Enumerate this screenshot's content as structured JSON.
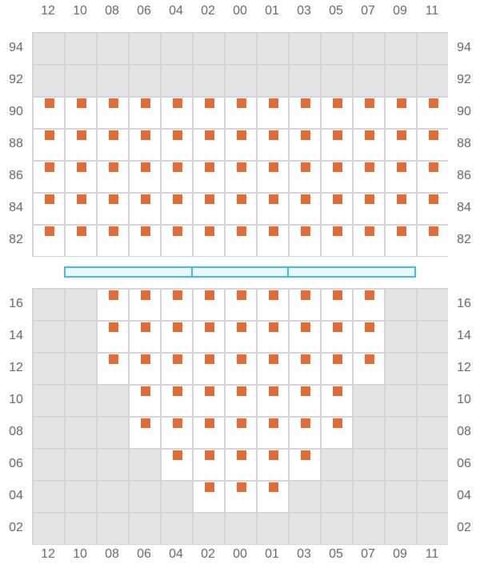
{
  "columns": [
    "12",
    "10",
    "08",
    "06",
    "04",
    "02",
    "00",
    "01",
    "03",
    "05",
    "07",
    "09",
    "11"
  ],
  "top_section": {
    "rows": [
      {
        "label": "94",
        "available_cols": []
      },
      {
        "label": "92",
        "available_cols": []
      },
      {
        "label": "90",
        "available_cols": [
          "12",
          "10",
          "08",
          "06",
          "04",
          "02",
          "00",
          "01",
          "03",
          "05",
          "07",
          "09",
          "11"
        ]
      },
      {
        "label": "88",
        "available_cols": [
          "12",
          "10",
          "08",
          "06",
          "04",
          "02",
          "00",
          "01",
          "03",
          "05",
          "07",
          "09",
          "11"
        ]
      },
      {
        "label": "86",
        "available_cols": [
          "12",
          "10",
          "08",
          "06",
          "04",
          "02",
          "00",
          "01",
          "03",
          "05",
          "07",
          "09",
          "11"
        ]
      },
      {
        "label": "84",
        "available_cols": [
          "12",
          "10",
          "08",
          "06",
          "04",
          "02",
          "00",
          "01",
          "03",
          "05",
          "07",
          "09",
          "11"
        ]
      },
      {
        "label": "82",
        "available_cols": [
          "12",
          "10",
          "08",
          "06",
          "04",
          "02",
          "00",
          "01",
          "03",
          "05",
          "07",
          "09",
          "11"
        ]
      }
    ]
  },
  "bottom_section": {
    "rows": [
      {
        "label": "16",
        "available_cols": [
          "08",
          "06",
          "04",
          "02",
          "00",
          "01",
          "03",
          "05",
          "07"
        ]
      },
      {
        "label": "14",
        "available_cols": [
          "08",
          "06",
          "04",
          "02",
          "00",
          "01",
          "03",
          "05",
          "07"
        ]
      },
      {
        "label": "12",
        "available_cols": [
          "08",
          "06",
          "04",
          "02",
          "00",
          "01",
          "03",
          "05",
          "07"
        ]
      },
      {
        "label": "10",
        "available_cols": [
          "06",
          "04",
          "02",
          "00",
          "01",
          "03",
          "05"
        ]
      },
      {
        "label": "08",
        "available_cols": [
          "06",
          "04",
          "02",
          "00",
          "01",
          "03",
          "05"
        ]
      },
      {
        "label": "06",
        "available_cols": [
          "04",
          "02",
          "00",
          "01",
          "03"
        ]
      },
      {
        "label": "04",
        "available_cols": [
          "02",
          "00",
          "01"
        ]
      },
      {
        "label": "02",
        "available_cols": []
      }
    ]
  },
  "colors": {
    "seat": "#e06c36",
    "unavailable": "#e4e4e7",
    "grid": "#d5d5d8",
    "divider": "#3bbcf0"
  }
}
